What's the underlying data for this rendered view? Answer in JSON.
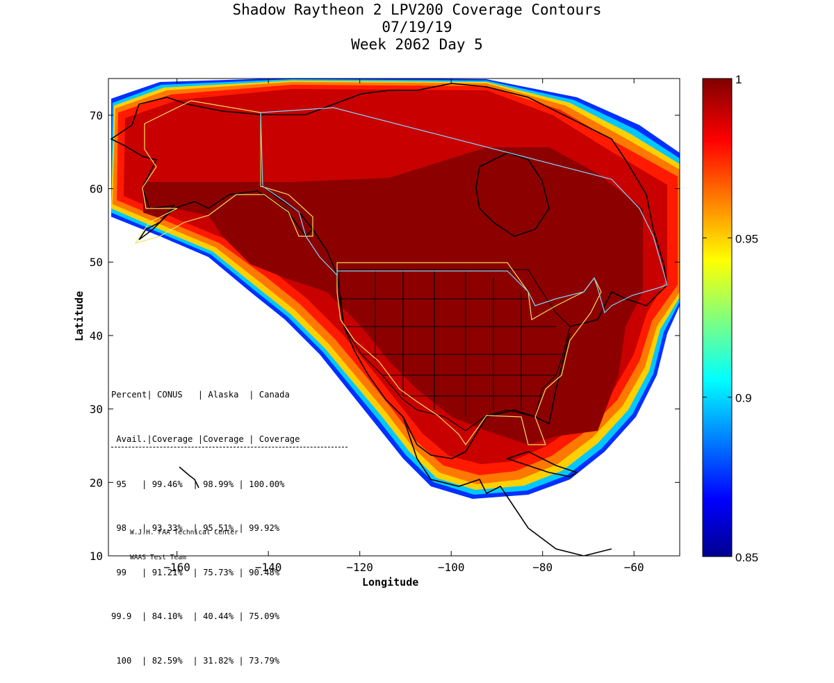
{
  "title": {
    "line1": "Shadow Raytheon 2 LPV200 Coverage Contours",
    "line2": "07/19/19",
    "line3": "Week 2062 Day 5"
  },
  "axes": {
    "xlabel": "Longitude",
    "ylabel": "Latitude",
    "xlim": [
      -175,
      -50
    ],
    "ylim": [
      10,
      75
    ],
    "x_ticks": [
      -160,
      -140,
      -120,
      -100,
      -80,
      -60
    ],
    "y_ticks": [
      10,
      20,
      30,
      40,
      50,
      60,
      70
    ]
  },
  "colorbar": {
    "colormap": "jet",
    "range": [
      0.85,
      1
    ],
    "ticks": [
      "1",
      "0.95",
      "0.9",
      "0.85"
    ]
  },
  "stats_table": {
    "header1": "Percent| CONUS   | Alaska  | Canada",
    "header2": " Avail.|Coverage |Coverage | Coverage",
    "rule": "------------------------------------",
    "rows": [
      " 95   | 99.46%  | 98.99% | 100.00%",
      " 98   | 93.33%  | 95.51% | 99.92%",
      " 99   | 91.21%  | 75.73% | 90.48%",
      "99.9  | 84.10%  | 40.44% | 75.09%",
      " 100  | 82.59%  | 31.82% | 73.79%"
    ]
  },
  "credit": {
    "line1": "W.J.H. FAA Technical Center",
    "line2": "WAAS Test Team"
  }
}
